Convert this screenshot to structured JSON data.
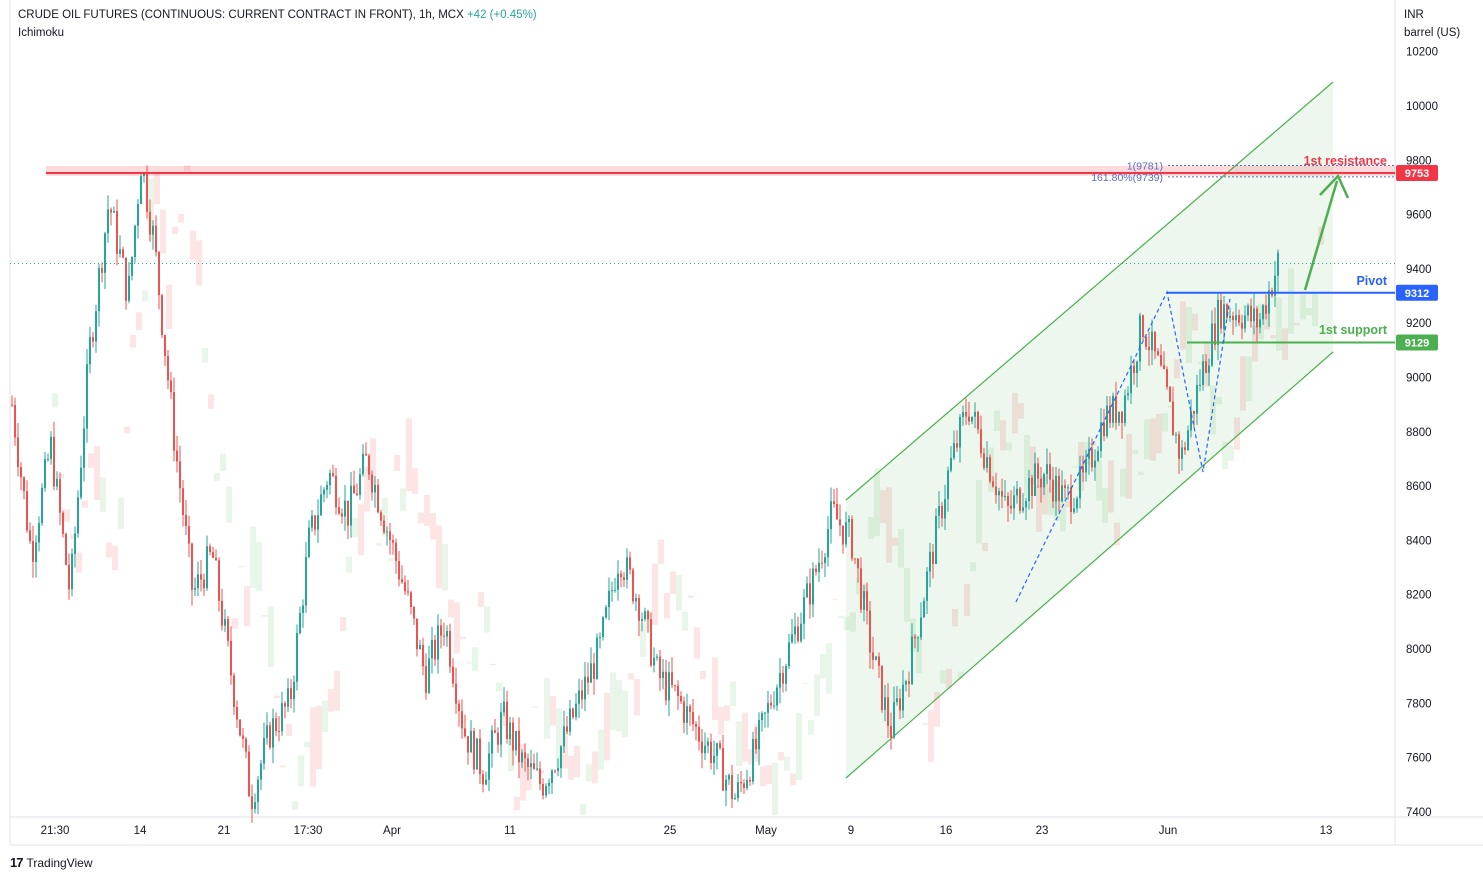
{
  "header": {
    "symbol": "CRUDE OIL FUTURES (CONTINUOUS: CURRENT CONTRACT IN FRONT), 1h, MCX",
    "change": "+42 (+0.45%)",
    "indicator": "Ichimoku"
  },
  "axis_unit": {
    "currency": "INR",
    "unit": "barrel (US)"
  },
  "footer": {
    "brand": "TradingView",
    "logo": "17"
  },
  "colors": {
    "up": "#26a69a",
    "down": "#ef5350",
    "channel": "#4caf50",
    "resistance": "#f23645",
    "pivot": "#2962ff",
    "support": "#4caf50",
    "cloud_bull": "#e6f4e7",
    "cloud_bear": "#fde2e2"
  },
  "chart_data": {
    "type": "candlestick",
    "y_ticks": [
      "10200",
      "10000",
      "9800",
      "9600",
      "9400",
      "9200",
      "9000",
      "8800",
      "8600",
      "8400",
      "8200",
      "8000",
      "7800",
      "7600",
      "7400"
    ],
    "ylim": [
      7380,
      10400
    ],
    "x_ticks": [
      "21:30",
      "14",
      "21",
      "17:30",
      "Apr",
      "11",
      "25",
      "May",
      "9",
      "16",
      "23",
      "Jun",
      "13"
    ],
    "levels": [
      {
        "name": "1st resistance",
        "value": 9753,
        "label": "9753"
      },
      {
        "name": "Pivot",
        "value": 9312,
        "label": "9312"
      },
      {
        "name": "1st support",
        "value": 9129,
        "label": "9129"
      }
    ],
    "fib_labels": [
      {
        "text": "1(9781)",
        "value": 9781
      },
      {
        "text": "161.80%(9739)",
        "value": 9739
      }
    ],
    "last_price": 9420,
    "price_path": [
      [
        0,
        8900
      ],
      [
        6,
        8350
      ],
      [
        12,
        8750
      ],
      [
        18,
        8200
      ],
      [
        24,
        9100
      ],
      [
        30,
        9650
      ],
      [
        36,
        9300
      ],
      [
        40,
        9800
      ],
      [
        44,
        9500
      ],
      [
        50,
        8800
      ],
      [
        56,
        8200
      ],
      [
        62,
        8350
      ],
      [
        68,
        7900
      ],
      [
        74,
        7450
      ],
      [
        80,
        7700
      ],
      [
        86,
        7800
      ],
      [
        92,
        8400
      ],
      [
        98,
        8650
      ],
      [
        104,
        8500
      ],
      [
        110,
        8700
      ],
      [
        116,
        8450
      ],
      [
        122,
        8200
      ],
      [
        128,
        7900
      ],
      [
        134,
        8100
      ],
      [
        140,
        7700
      ],
      [
        146,
        7550
      ],
      [
        152,
        7750
      ],
      [
        158,
        7580
      ],
      [
        164,
        7500
      ],
      [
        170,
        7640
      ],
      [
        176,
        7820
      ],
      [
        182,
        8000
      ],
      [
        188,
        8350
      ],
      [
        194,
        8180
      ],
      [
        200,
        7900
      ],
      [
        206,
        7820
      ],
      [
        212,
        7700
      ],
      [
        218,
        7600
      ],
      [
        224,
        7450
      ],
      [
        230,
        7620
      ],
      [
        236,
        7850
      ],
      [
        242,
        8050
      ],
      [
        248,
        8250
      ],
      [
        254,
        8500
      ],
      [
        260,
        8400
      ],
      [
        266,
        8000
      ],
      [
        272,
        7700
      ],
      [
        278,
        7950
      ],
      [
        284,
        8300
      ],
      [
        290,
        8650
      ],
      [
        296,
        8900
      ],
      [
        302,
        8700
      ],
      [
        308,
        8500
      ],
      [
        314,
        8600
      ],
      [
        320,
        8650
      ],
      [
        326,
        8550
      ],
      [
        332,
        8620
      ],
      [
        338,
        8850
      ],
      [
        344,
        8900
      ],
      [
        350,
        9200
      ],
      [
        356,
        9000
      ],
      [
        362,
        8700
      ],
      [
        368,
        9000
      ],
      [
        374,
        9250
      ],
      [
        380,
        9240
      ],
      [
        386,
        9200
      ],
      [
        392,
        9420
      ]
    ]
  }
}
